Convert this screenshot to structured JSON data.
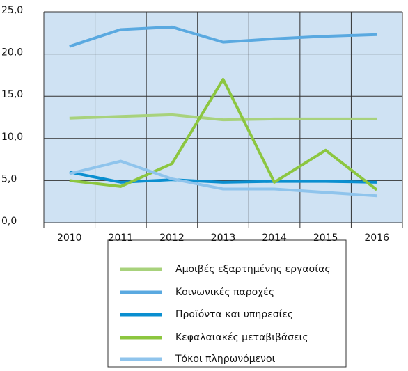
{
  "chart_data": {
    "type": "line",
    "categories": [
      "2010",
      "2011",
      "2012",
      "2013",
      "2014",
      "2015",
      "2016"
    ],
    "series": [
      {
        "name": "Αμοιβές εξαρτημένης εργασίας",
        "color": "#a8d27c",
        "values": [
          12.4,
          12.6,
          12.8,
          12.2,
          12.3,
          12.3,
          12.3
        ]
      },
      {
        "name": "Κοινωνικές παροχές",
        "color": "#5aa9e0",
        "values": [
          20.9,
          22.9,
          23.2,
          21.4,
          21.8,
          22.1,
          22.3
        ]
      },
      {
        "name": "Προϊόντα και υπηρεσίες",
        "color": "#0a8fd0",
        "values": [
          6.0,
          4.8,
          5.1,
          4.8,
          4.9,
          4.9,
          4.8
        ]
      },
      {
        "name": "Κεφαλαιακές μεταβιβάσεις",
        "color": "#8cc63f",
        "values": [
          5.0,
          4.3,
          7.0,
          17.0,
          4.8,
          8.6,
          3.9
        ]
      },
      {
        "name": "Τόκοι πληρωνόμενοι",
        "color": "#8fc4ec",
        "values": [
          5.8,
          7.3,
          5.2,
          4.0,
          4.0,
          3.6,
          3.2
        ]
      }
    ],
    "ylim": [
      0,
      25
    ],
    "yticks": [
      {
        "value": 0,
        "label": "0,0"
      },
      {
        "value": 5,
        "label": "5,0"
      },
      {
        "value": 10,
        "label": "10,0"
      },
      {
        "value": 15,
        "label": "15,0"
      },
      {
        "value": 20,
        "label": "20,0"
      },
      {
        "value": 25,
        "label": "25,0"
      }
    ],
    "grid": true
  }
}
